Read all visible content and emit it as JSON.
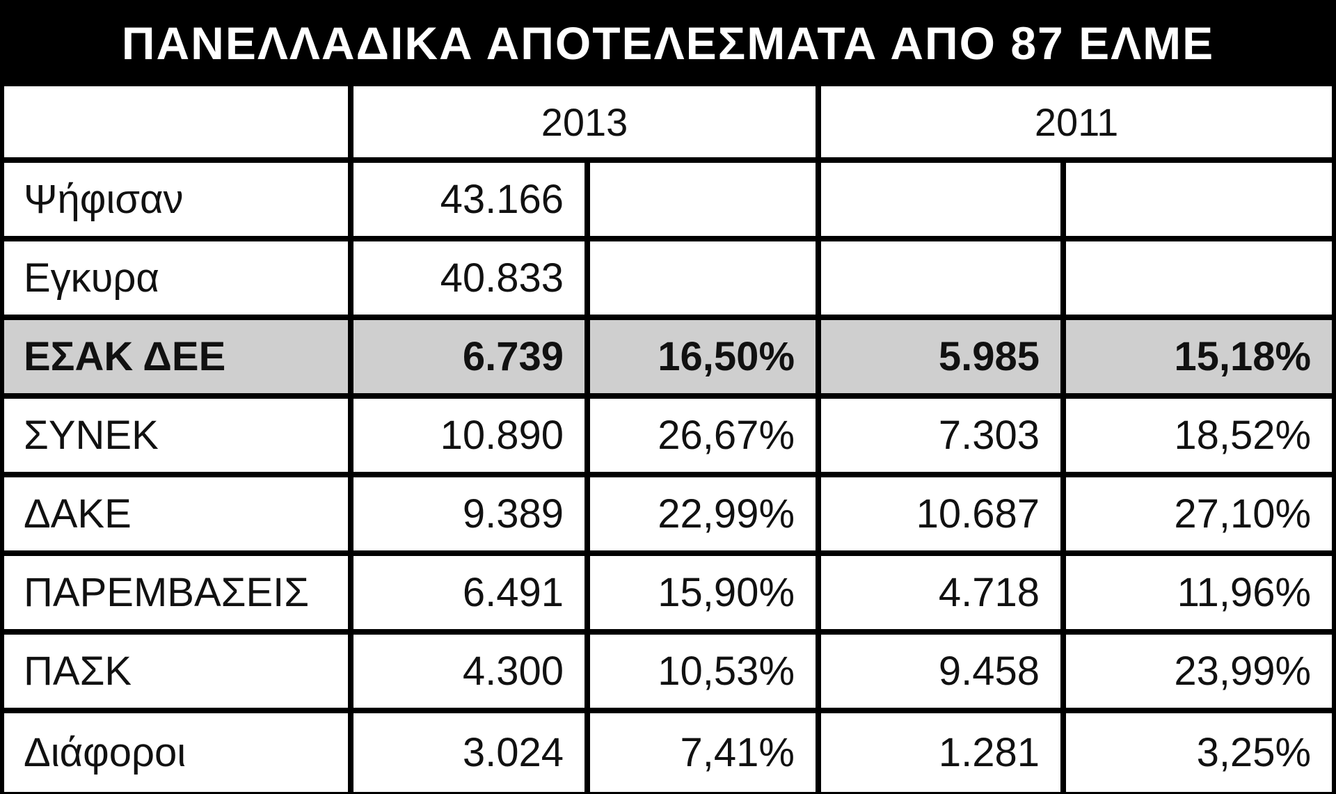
{
  "title": "ΠΑΝΕΛΛΑΔΙΚΑ ΑΠΟΤΕΛΕΣΜΑΤΑ ΑΠΟ 87 ΕΛΜΕ",
  "years": [
    "2013",
    "2011"
  ],
  "rows": [
    {
      "label": "Ψήφισαν",
      "v2013": "43.166",
      "p2013": "",
      "v2011": "",
      "p2011": "",
      "highlight": false
    },
    {
      "label": "Εγκυρα",
      "v2013": "40.833",
      "p2013": "",
      "v2011": "",
      "p2011": "",
      "highlight": false
    },
    {
      "label": "ΕΣΑΚ ΔΕΕ",
      "v2013": "6.739",
      "p2013": "16,50%",
      "v2011": "5.985",
      "p2011": "15,18%",
      "highlight": true
    },
    {
      "label": "ΣΥΝΕΚ",
      "v2013": "10.890",
      "p2013": "26,67%",
      "v2011": "7.303",
      "p2011": "18,52%",
      "highlight": false
    },
    {
      "label": "ΔΑΚΕ",
      "v2013": "9.389",
      "p2013": "22,99%",
      "v2011": "10.687",
      "p2011": "27,10%",
      "highlight": false
    },
    {
      "label": "ΠΑΡΕΜΒΑΣΕΙΣ",
      "v2013": "6.491",
      "p2013": "15,90%",
      "v2011": "4.718",
      "p2011": "11,96%",
      "highlight": false
    },
    {
      "label": "ΠΑΣΚ",
      "v2013": "4.300",
      "p2013": "10,53%",
      "v2011": "9.458",
      "p2011": "23,99%",
      "highlight": false
    },
    {
      "label": "Διάφοροι",
      "v2013": "3.024",
      "p2013": "7,41%",
      "v2011": "1.281",
      "p2011": "3,25%",
      "highlight": false
    }
  ],
  "colors": {
    "frame": "#000000",
    "highlight_row": "#cfcfcf",
    "cell": "#ffffff"
  }
}
